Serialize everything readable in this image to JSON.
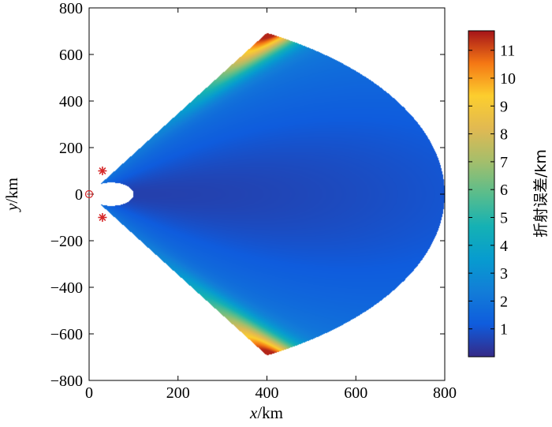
{
  "chart_data": {
    "type": "heatmap",
    "title": "",
    "xlabel": {
      "var": "x",
      "unit": "/km"
    },
    "ylabel": {
      "var": "y",
      "unit": "/km"
    },
    "xlim": [
      0,
      800
    ],
    "ylim": [
      -800,
      800
    ],
    "x_ticks": [
      "0",
      "200",
      "400",
      "600",
      "800"
    ],
    "y_ticks": [
      "800",
      "600",
      "400",
      "200",
      "0",
      "−200",
      "−400",
      "−600",
      "−800"
    ],
    "colorbar": {
      "label": "折射误差/km",
      "range": [
        0,
        11.7
      ],
      "ticks": [
        "1",
        "2",
        "3",
        "4",
        "5",
        "6",
        "7",
        "8",
        "9",
        "10",
        "11"
      ],
      "colormap": "parula"
    },
    "region": {
      "shape": "sector with semicircular notch",
      "apex_km": [
        0,
        0
      ],
      "outer_radius_km": 800,
      "half_angle_deg": 60,
      "notch_center_km": [
        50,
        0
      ],
      "notch_radius_km": 50,
      "min_error_km": 0.5,
      "max_error_km": 11.5,
      "max_location": "outer corners of the sector near (400, ±690)"
    },
    "markers": [
      {
        "type": "star",
        "x": 30,
        "y": 100,
        "color": "#d62728"
      },
      {
        "type": "star",
        "x": 30,
        "y": -100,
        "color": "#d62728"
      },
      {
        "type": "circle",
        "x": 0,
        "y": 0,
        "color": "#d62728"
      }
    ],
    "grid": false
  }
}
